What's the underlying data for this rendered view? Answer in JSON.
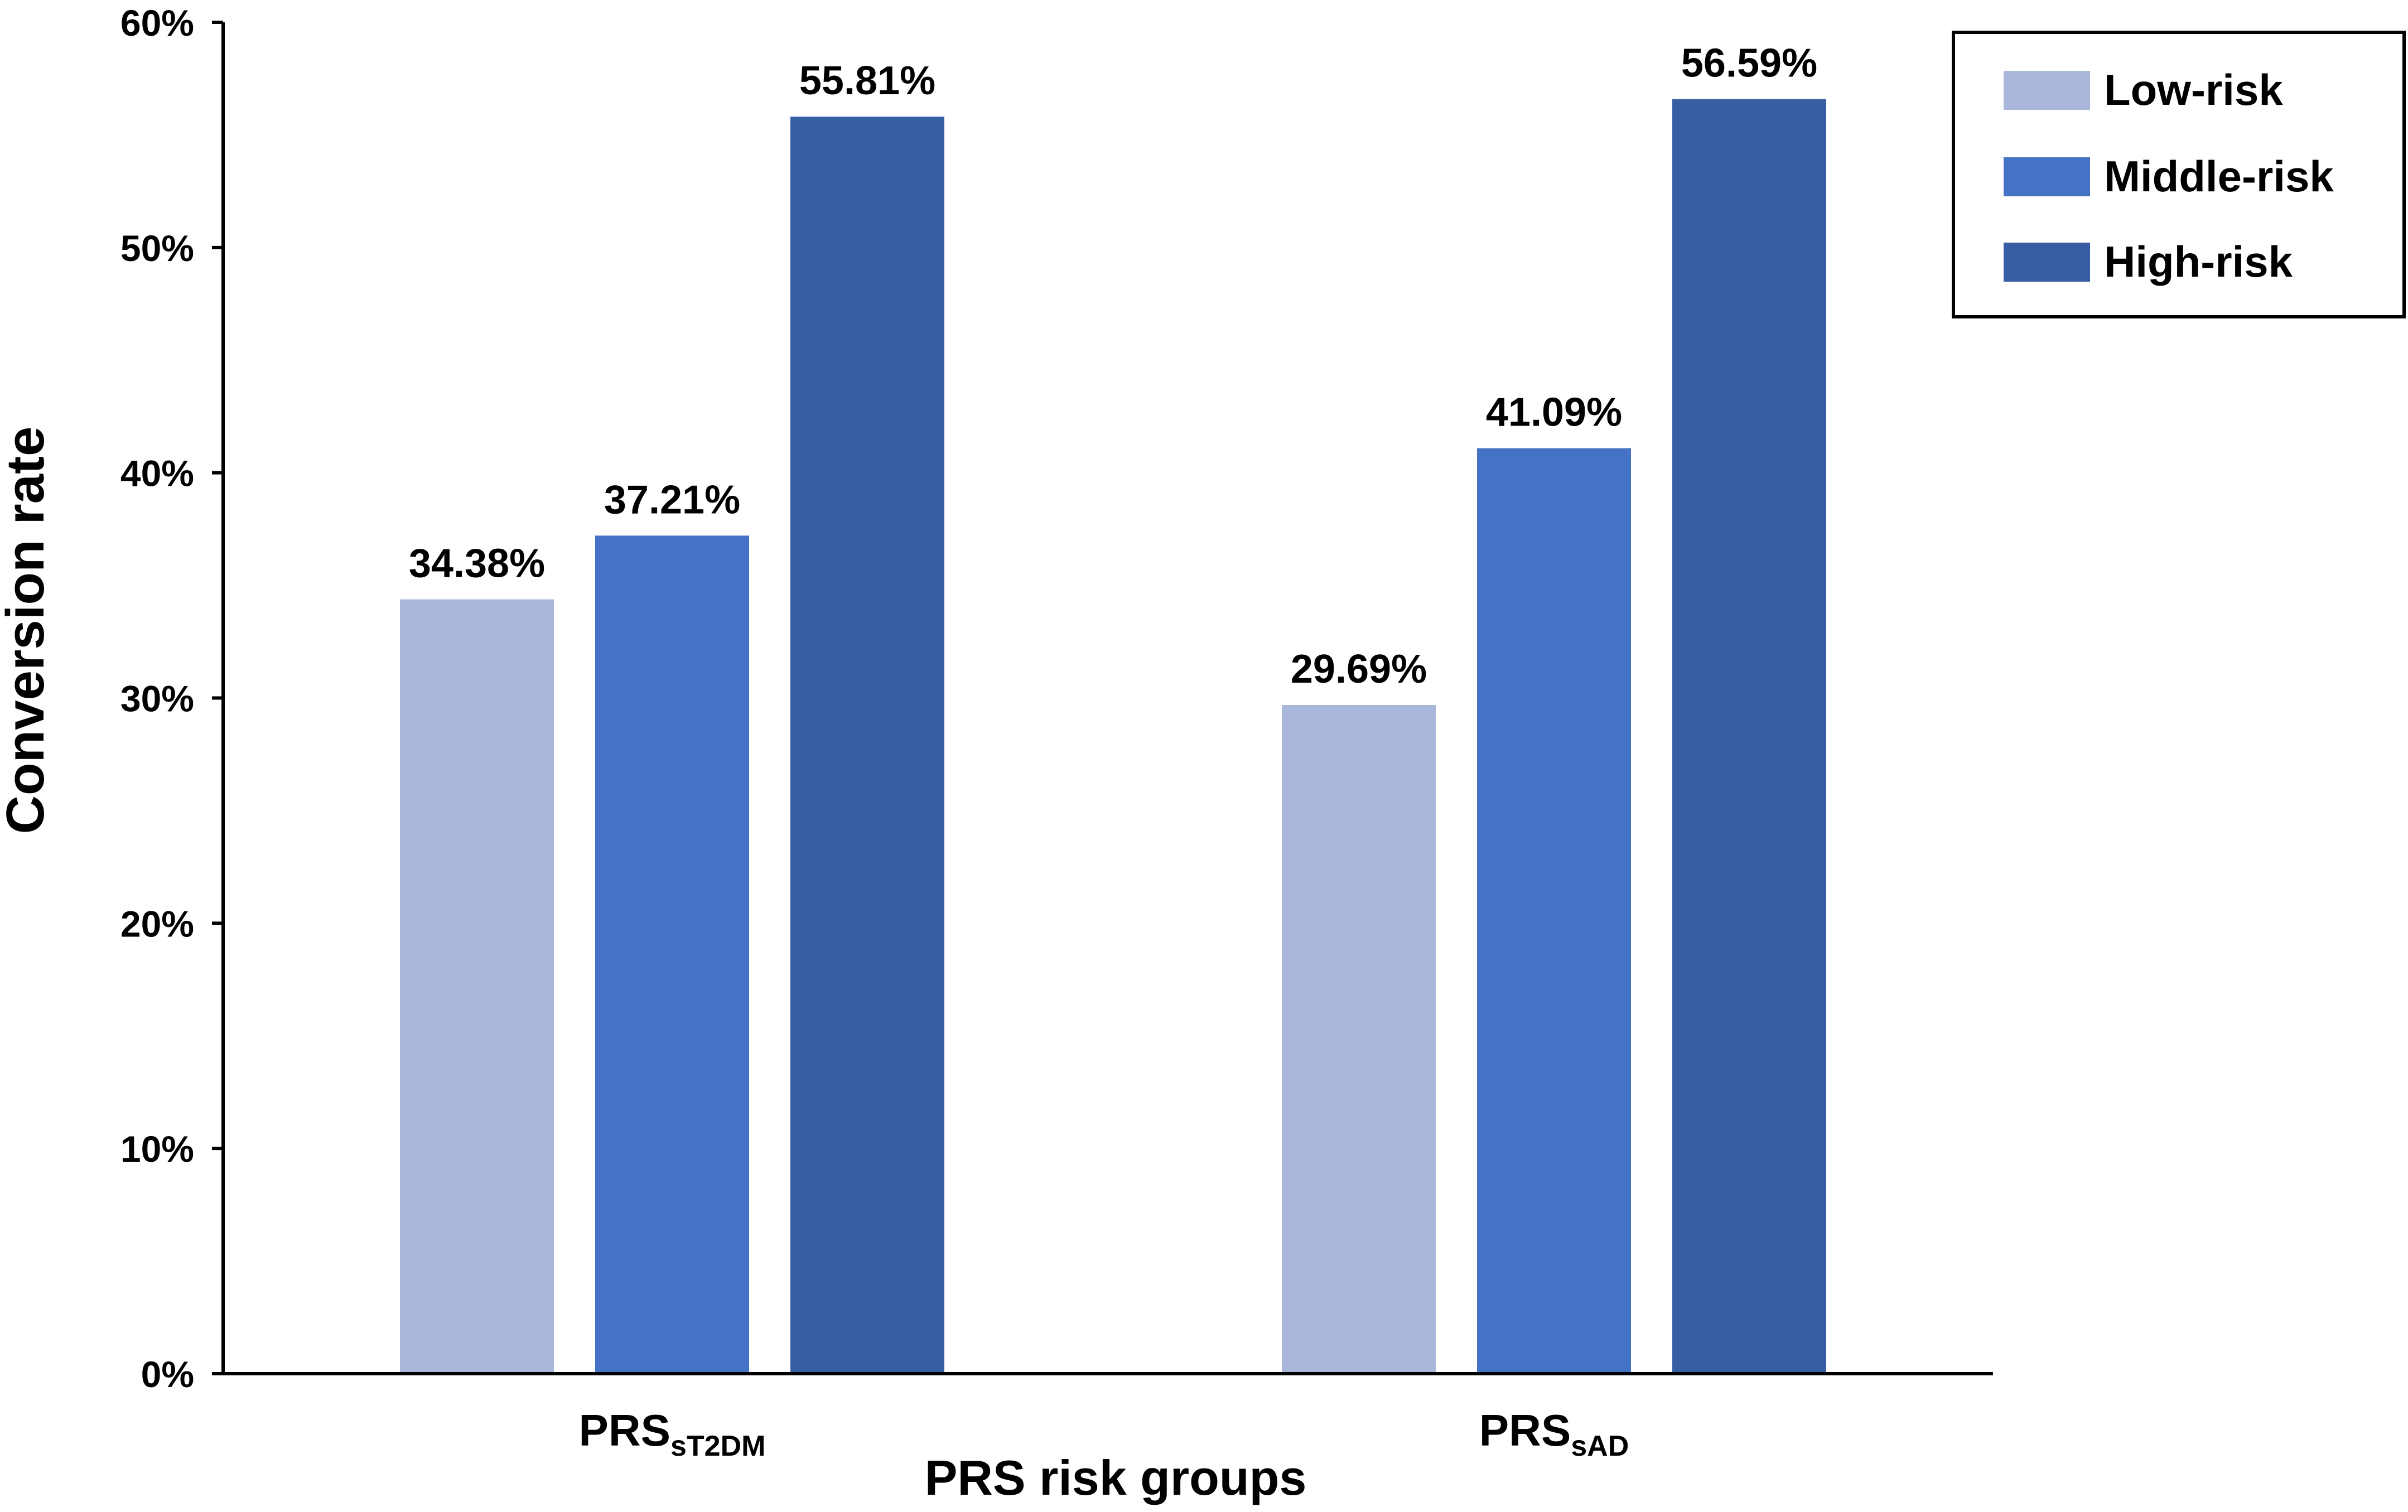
{
  "chart_data": {
    "type": "bar",
    "categories": [
      {
        "main": "PRS",
        "sub": "sT2DM"
      },
      {
        "main": "PRS",
        "sub": "sAD"
      }
    ],
    "series": [
      {
        "name": "Low-risk",
        "color": "#a9b8da",
        "values": [
          34.38,
          29.69
        ],
        "labels": [
          "34.38%",
          "29.69%"
        ]
      },
      {
        "name": "Middle-risk",
        "color": "#4472c4",
        "values": [
          37.21,
          41.09
        ],
        "labels": [
          "37.21%",
          "41.09%"
        ]
      },
      {
        "name": "High-risk",
        "color": "#375da2",
        "values": [
          55.81,
          56.59
        ],
        "labels": [
          "55.81%",
          "56.59%"
        ]
      }
    ],
    "xlabel": "PRS risk groups",
    "ylabel": "Conversion rate",
    "ylim": [
      0,
      60
    ],
    "yticks": [
      0,
      10,
      20,
      30,
      40,
      50,
      60
    ],
    "ytick_labels": [
      "0%",
      "10%",
      "20%",
      "30%",
      "40%",
      "50%",
      "60%"
    ],
    "grid": false,
    "legend_position": "top-right"
  }
}
